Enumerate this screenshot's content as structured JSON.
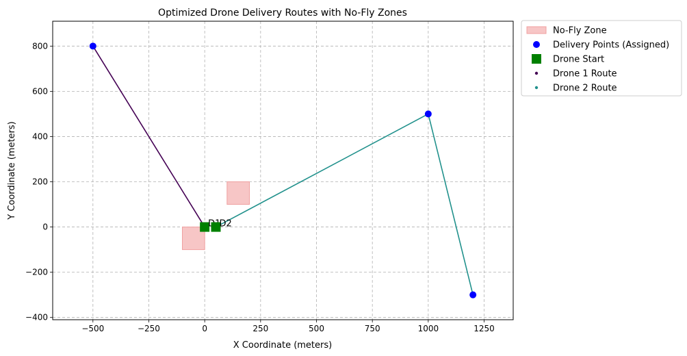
{
  "chart_data": {
    "type": "line",
    "title": "Optimized Drone Delivery Routes with No-Fly Zones",
    "xlabel": "X Coordinate (meters)",
    "ylabel": "Y Coordinate (meters)",
    "xlim": [
      -680,
      1380
    ],
    "ylim": [
      -410,
      910
    ],
    "xticks": [
      -500,
      -250,
      0,
      250,
      500,
      750,
      1000,
      1250
    ],
    "xtick_labels": [
      "−500",
      "−250",
      "0",
      "250",
      "500",
      "750",
      "1000",
      "1250"
    ],
    "yticks": [
      -400,
      -200,
      0,
      200,
      400,
      600,
      800
    ],
    "ytick_labels": [
      "−400",
      "−200",
      "0",
      "200",
      "400",
      "600",
      "800"
    ],
    "grid": true,
    "legend_position": "outside upper-right",
    "no_fly_zones": [
      {
        "x0": -100,
        "x1": 0,
        "y0": -100,
        "y1": 0
      },
      {
        "x0": 100,
        "x1": 200,
        "y0": 100,
        "y1": 200
      }
    ],
    "delivery_points": [
      {
        "x": -500,
        "y": 800
      },
      {
        "x": 1000,
        "y": 500
      },
      {
        "x": 1200,
        "y": -300
      }
    ],
    "drone_starts": [
      {
        "x": 0,
        "y": 0,
        "label": "D1"
      },
      {
        "x": 50,
        "y": 0,
        "label": "D2"
      }
    ],
    "series": [
      {
        "name": "Drone 1 Route",
        "color": "#440154",
        "points": [
          [
            0,
            0
          ],
          [
            -500,
            800
          ]
        ]
      },
      {
        "name": "Drone 2 Route",
        "color": "#21918c",
        "points": [
          [
            50,
            0
          ],
          [
            1000,
            500
          ],
          [
            1200,
            -300
          ]
        ]
      }
    ],
    "legend": [
      {
        "label": "No-Fly Zone",
        "kind": "patch",
        "color": "#f7c6c6"
      },
      {
        "label": "Delivery Points (Assigned)",
        "kind": "circle",
        "color": "#0000ff"
      },
      {
        "label": "Drone Start",
        "kind": "square",
        "color": "#008000"
      },
      {
        "label": "Drone 1 Route",
        "kind": "dot",
        "color": "#440154"
      },
      {
        "label": "Drone 2 Route",
        "kind": "dot",
        "color": "#21918c"
      }
    ],
    "colors": {
      "no_fly_fill": "#f7c6c6",
      "no_fly_edge": "#f0a0a0",
      "delivery": "#0000ff",
      "start": "#008000"
    }
  }
}
